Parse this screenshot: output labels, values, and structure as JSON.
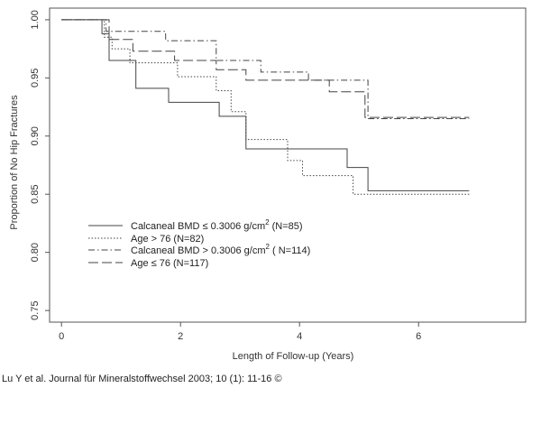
{
  "caption": "Lu Y et al. Journal für Mineralstoffwechsel 2003; 10 (1): 11-16 ©",
  "chart_data": {
    "type": "line",
    "subtype": "step",
    "xlabel": "Length of Follow-up (Years)",
    "ylabel": "Proportion of No Hip Fractures",
    "xlim": [
      -0.2,
      7.8
    ],
    "ylim": [
      0.74,
      1.01
    ],
    "xticks": [
      0,
      2,
      4,
      6
    ],
    "xtick_labels": [
      "0",
      "2",
      "4",
      "6"
    ],
    "yticks": [
      0.75,
      0.8,
      0.85,
      0.9,
      0.95,
      1.0
    ],
    "ytick_labels": [
      "0.75",
      "0.80",
      "0.85",
      "0.90",
      "0.95",
      "1.00"
    ],
    "grid": false,
    "legend_position": "bottom-left",
    "series": [
      {
        "name": "Calcaneal BMD ≤ 0.3006 g/cm² (N=85)",
        "legend_main": "Calcaneal BMD ≤ 0.3006 g/cm",
        "legend_sup": "2",
        "legend_suffix": " (N=85)",
        "dash": "solid",
        "x": [
          0,
          0.68,
          0.8,
          1.2,
          1.25,
          1.8,
          2.2,
          2.65,
          3.1,
          4.8,
          5.15,
          6.85
        ],
        "y": [
          1.0,
          0.988,
          0.965,
          0.965,
          0.941,
          0.929,
          0.929,
          0.917,
          0.889,
          0.873,
          0.853,
          0.853
        ]
      },
      {
        "name": "Age > 76 (N=82)",
        "legend_main": "Age > 76 (N=82)",
        "legend_sup": "",
        "legend_suffix": "",
        "dash": "dotted",
        "x": [
          0,
          0.72,
          0.85,
          1.15,
          1.5,
          1.95,
          2.6,
          2.85,
          3.1,
          3.8,
          4.05,
          4.9,
          6.85
        ],
        "y": [
          1.0,
          0.985,
          0.975,
          0.963,
          0.963,
          0.951,
          0.939,
          0.921,
          0.897,
          0.879,
          0.866,
          0.85,
          0.85
        ]
      },
      {
        "name": "Calcaneal BMD > 0.3006 g/cm² ( N=114)",
        "legend_main": "Calcaneal BMD > 0.3006 g/cm",
        "legend_sup": "2",
        "legend_suffix": " ( N=114)",
        "dash": "dashdot",
        "x": [
          0,
          0.75,
          1.5,
          1.75,
          2.6,
          3.35,
          4.15,
          5.15,
          6.85
        ],
        "y": [
          1.0,
          0.99,
          0.99,
          0.982,
          0.965,
          0.955,
          0.948,
          0.915,
          0.915
        ]
      },
      {
        "name": "Age ≤ 76 (N=117)",
        "legend_main": "Age ≤ 76 (N=117)",
        "legend_sup": "",
        "legend_suffix": "",
        "dash": "longdash",
        "x": [
          0,
          0.8,
          1.2,
          1.9,
          2.6,
          3.1,
          4.5,
          5.1,
          6.85
        ],
        "y": [
          1.0,
          0.983,
          0.973,
          0.965,
          0.957,
          0.948,
          0.938,
          0.916,
          0.916
        ]
      }
    ]
  }
}
